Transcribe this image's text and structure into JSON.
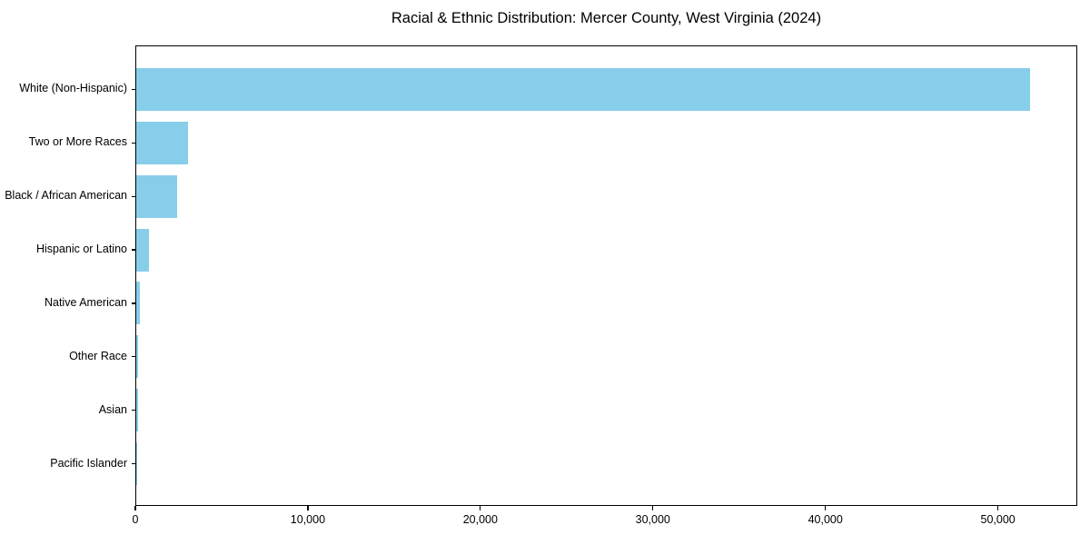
{
  "title": "Racial & Ethnic Distribution: Mercer County, West Virginia (2024)",
  "colors": {
    "bar": "#87CEEB",
    "axis": "#000000",
    "text": "#000000",
    "background": "#FFFFFF"
  },
  "chart_data": {
    "type": "bar",
    "orientation": "horizontal",
    "title": "Racial & Ethnic Distribution: Mercer County, West Virginia (2024)",
    "xlabel": "",
    "ylabel": "",
    "categories": [
      "White (Non-Hispanic)",
      "Two or More Races",
      "Black / African American",
      "Hispanic or Latino",
      "Native American",
      "Other Race",
      "Asian",
      "Pacific Islander"
    ],
    "values": [
      51900,
      3000,
      2400,
      760,
      200,
      110,
      100,
      20
    ],
    "xlim": [
      0,
      54600
    ],
    "x_ticks": [
      0,
      10000,
      20000,
      30000,
      40000,
      50000
    ],
    "x_tick_labels": [
      "0",
      "10,000",
      "20,000",
      "30,000",
      "40,000",
      "50,000"
    ],
    "bar_color": "#87CEEB",
    "grid": false,
    "legend": null
  }
}
